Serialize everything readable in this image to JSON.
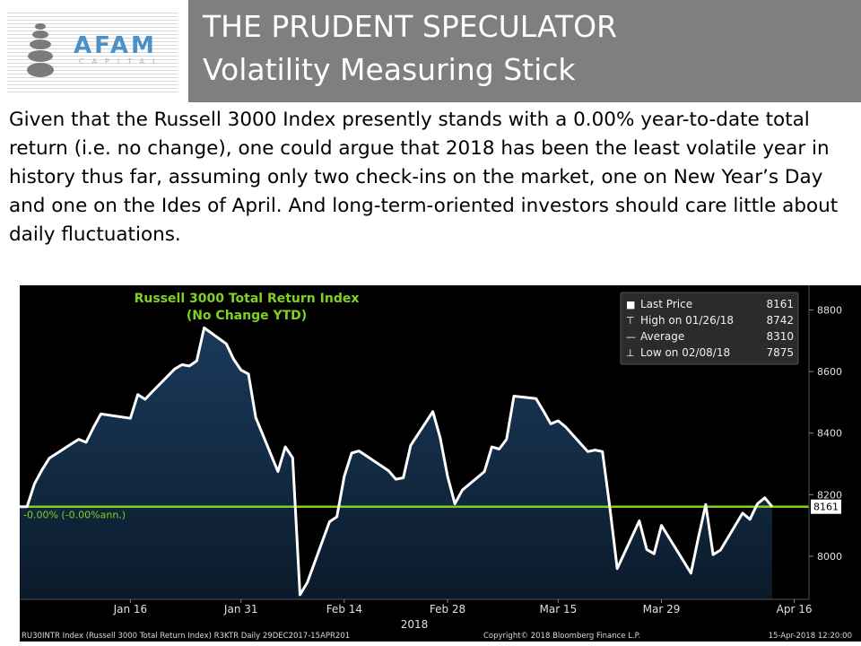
{
  "header": {
    "logo_name": "AFAM",
    "logo_sub": "CAPITAL",
    "title_line1": "THE PRUDENT SPECULATOR",
    "title_line2": "Volatility Measuring Stick"
  },
  "paragraph": "Given that the Russell 3000 Index presently stands with a 0.00% year-to-date total return (i.e. no change), one could argue that 2018 has been the least volatile year in history thus far, assuming only two check-ins on the market, one on New Year’s Day and one on the Ides of April. And long-term-oriented investors should care little about daily fluctuations.",
  "colors": {
    "background": "#000000",
    "area_top": "#1a3a5c",
    "area_bottom": "#0b1a2a",
    "line": "#ffffff",
    "reference": "#7ed321",
    "title": "#7ed321"
  },
  "chart_data": {
    "type": "area",
    "title": "Russell 3000 Total Return Index",
    "subtitle": "(No Change YTD)",
    "x": [
      "2018-01-02",
      "2018-01-03",
      "2018-01-04",
      "2018-01-05",
      "2018-01-08",
      "2018-01-09",
      "2018-01-10",
      "2018-01-11",
      "2018-01-12",
      "2018-01-16",
      "2018-01-17",
      "2018-01-18",
      "2018-01-19",
      "2018-01-22",
      "2018-01-23",
      "2018-01-24",
      "2018-01-25",
      "2018-01-26",
      "2018-01-29",
      "2018-01-30",
      "2018-01-31",
      "2018-02-01",
      "2018-02-02",
      "2018-02-05",
      "2018-02-06",
      "2018-02-07",
      "2018-02-08",
      "2018-02-09",
      "2018-02-12",
      "2018-02-13",
      "2018-02-14",
      "2018-02-15",
      "2018-02-16",
      "2018-02-20",
      "2018-02-21",
      "2018-02-22",
      "2018-02-23",
      "2018-02-26",
      "2018-02-27",
      "2018-02-28",
      "2018-03-01",
      "2018-03-02",
      "2018-03-05",
      "2018-03-06",
      "2018-03-07",
      "2018-03-08",
      "2018-03-09",
      "2018-03-12",
      "2018-03-13",
      "2018-03-14",
      "2018-03-15",
      "2018-03-16",
      "2018-03-19",
      "2018-03-20",
      "2018-03-21",
      "2018-03-22",
      "2018-03-23",
      "2018-03-26",
      "2018-03-27",
      "2018-03-28",
      "2018-03-29",
      "2018-04-02",
      "2018-04-03",
      "2018-04-04",
      "2018-04-05",
      "2018-04-06",
      "2018-04-09",
      "2018-04-10",
      "2018-04-11",
      "2018-04-12",
      "2018-04-13"
    ],
    "series": [
      {
        "name": "Last Price",
        "values": [
          8161,
          8235,
          8280,
          8318,
          8365,
          8380,
          8370,
          8418,
          8462,
          8448,
          8525,
          8510,
          8535,
          8608,
          8622,
          8618,
          8635,
          8742,
          8690,
          8640,
          8605,
          8592,
          8450,
          8275,
          8355,
          8320,
          7875,
          7915,
          8112,
          8128,
          8260,
          8335,
          8342,
          8278,
          8250,
          8255,
          8360,
          8470,
          8385,
          8260,
          8170,
          8215,
          8275,
          8355,
          8348,
          8380,
          8520,
          8512,
          8472,
          8430,
          8440,
          8420,
          8340,
          8345,
          8340,
          8160,
          7960,
          8115,
          8022,
          8008,
          8100,
          7945,
          8060,
          8168,
          8005,
          8020,
          8140,
          8120,
          8170,
          8190,
          8161
        ]
      }
    ],
    "reference_line": {
      "value": 8161,
      "label": "-0.00% (-0.00%ann.)"
    },
    "ylim": [
      7860,
      8880
    ],
    "y_ticks": [
      8000,
      8200,
      8400,
      8600,
      8800
    ],
    "x_ticks": [
      {
        "date": "2018-01-16",
        "label": "Jan 16"
      },
      {
        "date": "2018-01-31",
        "label": "Jan 31"
      },
      {
        "date": "2018-02-14",
        "label": "Feb 14"
      },
      {
        "date": "2018-02-28",
        "label": "Feb 28"
      },
      {
        "date": "2018-03-15",
        "label": "Mar 15"
      },
      {
        "date": "2018-03-29",
        "label": "Mar 29"
      },
      {
        "date": "2018-04-16",
        "label": "Apr 16"
      }
    ],
    "x_year_label": "2018",
    "last_price_tag": "8161",
    "legend": [
      {
        "symbol": "■",
        "label": "Last Price",
        "value": "8161"
      },
      {
        "symbol": "⊤",
        "label": "High on 01/26/18",
        "value": "8742"
      },
      {
        "symbol": "—",
        "label": "Average",
        "value": "8310"
      },
      {
        "symbol": "⊥",
        "label": "Low on 02/08/18",
        "value": "7875"
      }
    ],
    "legend_placement": "top-right",
    "grid": false,
    "footer_left": "RU30INTR Index (Russell 3000 Total Return Index) R3KTR  Daily 29DEC2017-15APR201",
    "footer_center": "Copyright© 2018 Bloomberg Finance L.P.",
    "footer_right": "15-Apr-2018 12:20:00"
  }
}
